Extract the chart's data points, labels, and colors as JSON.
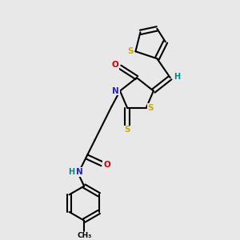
{
  "bg_color": "#e8e8e8",
  "bond_color": "#000000",
  "atom_colors": {
    "S": "#ccaa00",
    "N": "#2222cc",
    "O": "#cc0000",
    "H": "#008888",
    "C": "#000000"
  }
}
